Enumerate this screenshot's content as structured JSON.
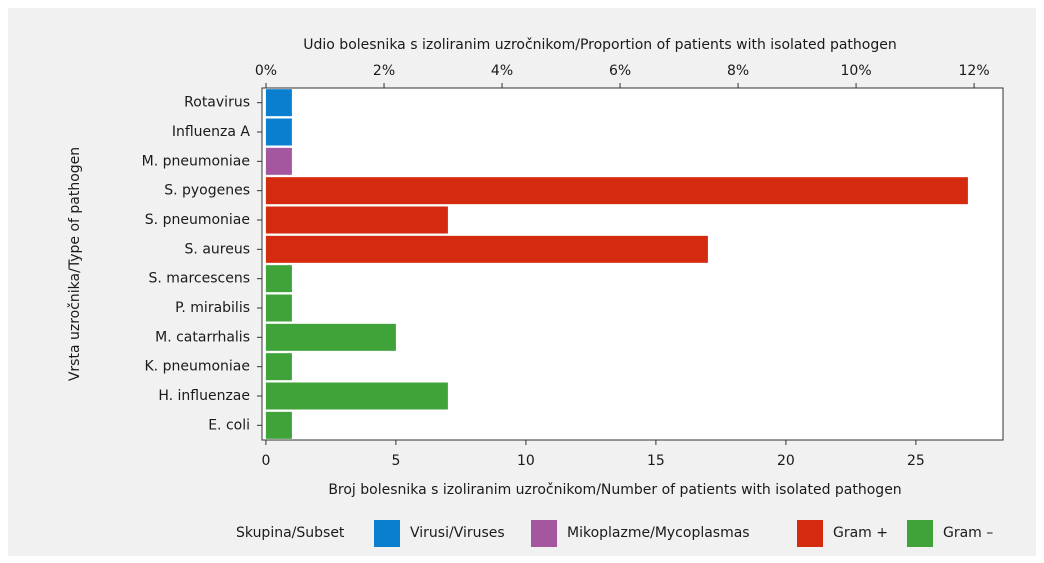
{
  "chart_data": {
    "type": "bar",
    "orientation": "horizontal",
    "xlabel": "Broj bolesnika s izoliranim uzročnikom/Number of patients with isolated pathogen",
    "x2label": "Udio bolesnika s izoliranim uzročnikom/Proportion of patients with isolated pathogen",
    "ylabel": "Vrsta uzročnika/Type of pathogen",
    "legend_title": "Skupina/Subset",
    "legend": "bottom",
    "categories": [
      "Rotavirus",
      "Influenza A",
      "M. pneumoniae",
      "S. pyogenes",
      "S. pneumoniae",
      "S. aureus",
      "S. marcescens",
      "P. mirabilis",
      "M. catarrhalis",
      "K. pneumoniae",
      "H. influenzae",
      "E. coli"
    ],
    "series": [
      {
        "name": "Virusi/Viruses",
        "color": "#0a7fd0",
        "values": [
          1,
          1,
          null,
          null,
          null,
          null,
          null,
          null,
          null,
          null,
          null,
          null
        ]
      },
      {
        "name": "Mikoplazme/Mycoplasmas",
        "color": "#a4579e",
        "values": [
          null,
          null,
          1,
          null,
          null,
          null,
          null,
          null,
          null,
          null,
          null,
          null
        ]
      },
      {
        "name": "Gram +",
        "color": "#d42a10",
        "values": [
          null,
          null,
          null,
          27,
          7,
          17,
          null,
          null,
          null,
          null,
          null,
          null
        ]
      },
      {
        "name": "Gram –",
        "color": "#3fa33a",
        "values": [
          null,
          null,
          null,
          null,
          null,
          null,
          1,
          1,
          5,
          1,
          7,
          1
        ]
      }
    ],
    "xlim": [
      -0.15,
      28.35
    ],
    "xticks": [
      0,
      5,
      10,
      15,
      20,
      25
    ],
    "x2lim": [
      -0.068,
      12.49
    ],
    "x2ticks": [
      {
        "value": 0,
        "label": "0%"
      },
      {
        "value": 2,
        "label": "2%"
      },
      {
        "value": 4,
        "label": "4%"
      },
      {
        "value": 6,
        "label": "6%"
      },
      {
        "value": 8,
        "label": "8%"
      },
      {
        "value": 10,
        "label": "10%"
      },
      {
        "value": 12,
        "label": "12%"
      }
    ]
  }
}
